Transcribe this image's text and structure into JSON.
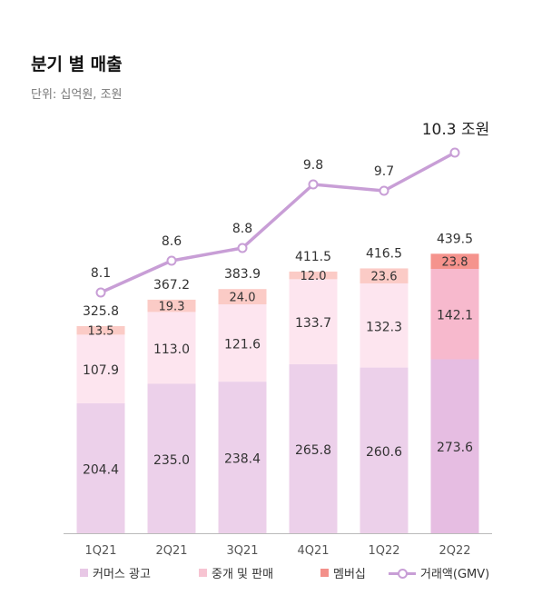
{
  "header": {
    "title": "분기 별 매출",
    "subtitle": "단위: 십억원, 조원"
  },
  "chart_data": {
    "type": "bar",
    "stacked": true,
    "categories": [
      "1Q21",
      "2Q21",
      "3Q21",
      "4Q21",
      "1Q22",
      "2Q22"
    ],
    "series": [
      {
        "name": "커머스 광고",
        "values": [
          204.4,
          235.0,
          238.4,
          265.8,
          260.6,
          273.6
        ],
        "color": "#ecd0ea"
      },
      {
        "name": "중개 및 판매",
        "values": [
          107.9,
          113.0,
          121.6,
          133.7,
          132.3,
          142.1
        ],
        "color": "#fde5ef"
      },
      {
        "name": "멤버십",
        "values": [
          13.5,
          19.3,
          24.0,
          12.0,
          23.6,
          23.8
        ],
        "color": "#fbcbc6"
      }
    ],
    "totals": [
      325.8,
      367.2,
      383.9,
      411.5,
      416.5,
      439.5
    ],
    "value_labels": {
      "commerce": [
        "204.4",
        "235.0",
        "238.4",
        "265.8",
        "260.6",
        "273.6"
      ],
      "brokerage": [
        "107.9",
        "113.0",
        "121.6",
        "133.7",
        "132.3",
        "142.1"
      ],
      "membership": [
        "13.5",
        "19.3",
        "24.0",
        "12.0",
        "23.6",
        "23.8"
      ],
      "totals": [
        "325.8",
        "367.2",
        "383.9",
        "411.5",
        "416.5",
        "439.5"
      ]
    },
    "highlight_category": "2Q22",
    "highlight_colors": {
      "commerce": "#e6bde2",
      "brokerage": "#f7b9cd",
      "membership": "#f5938d"
    },
    "line_series": {
      "name": "거래액(GMV)",
      "values": [
        8.1,
        8.6,
        8.8,
        9.8,
        9.7,
        10.3
      ],
      "labels": [
        "8.1",
        "8.6",
        "8.8",
        "9.8",
        "9.7",
        "10.3 조원"
      ],
      "color": "#c89ed6"
    },
    "grid": false,
    "legend_position": "bottom"
  },
  "legend": {
    "items": [
      {
        "label": "커머스 광고",
        "color": "#e8c8e6"
      },
      {
        "label": "중개 및 판매",
        "color": "#f7c4d2"
      },
      {
        "label": "멤버십",
        "color": "#f3908a"
      },
      {
        "label": "거래액(GMV)",
        "color": "#c89ed6"
      }
    ]
  }
}
